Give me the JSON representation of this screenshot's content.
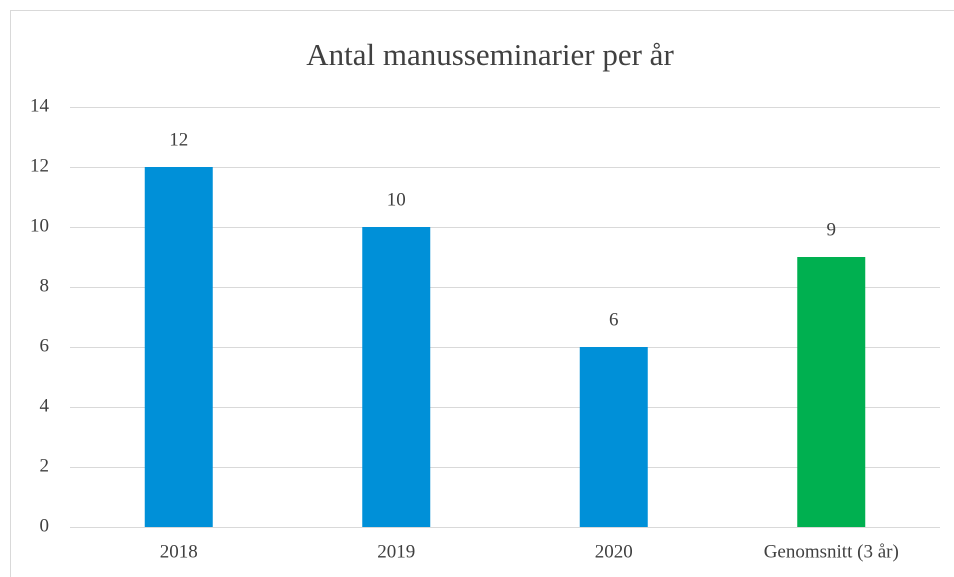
{
  "chart_data": {
    "type": "bar",
    "title": "Antal manusseminarier per år",
    "categories": [
      "2018",
      "2019",
      "2020",
      "Genomsnitt (3 år)"
    ],
    "values": [
      12,
      10,
      6,
      9
    ],
    "colors": [
      "#0090d8",
      "#0090d8",
      "#0090d8",
      "#00b050"
    ],
    "ylim": [
      0,
      14
    ],
    "yticks": [
      0,
      2,
      4,
      6,
      8,
      10,
      12,
      14
    ],
    "grid": true
  }
}
